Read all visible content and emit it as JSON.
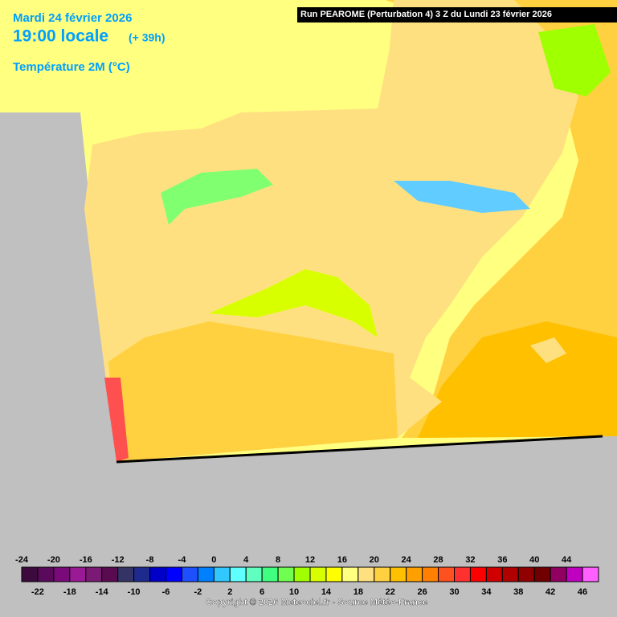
{
  "header": {
    "date": "Mardi 24 février 2026",
    "time": "19:00 locale",
    "lead": "(+ 39h)",
    "variable": "Température 2M (°C)"
  },
  "run": "Run PEAROME (Perturbation 4) 3 Z du Lundi 23 février 2026",
  "legend": {
    "ticks": [
      -24,
      -22,
      -20,
      -18,
      -16,
      -14,
      -12,
      -10,
      -8,
      -6,
      -4,
      -2,
      0,
      2,
      4,
      6,
      8,
      10,
      12,
      14,
      16,
      18,
      20,
      22,
      24,
      26,
      28,
      30,
      32,
      34,
      36,
      38,
      40,
      42,
      44,
      46
    ],
    "colors": [
      "#3c0a3c",
      "#5a0a5a",
      "#7a0a7a",
      "#9a1a96",
      "#7a1a74",
      "#5a0a50",
      "#333366",
      "#1e2a8c",
      "#0000c8",
      "#0000ff",
      "#1e50ff",
      "#0080ff",
      "#30c8ff",
      "#60ffff",
      "#60ffc0",
      "#40ff80",
      "#70ff50",
      "#a0ff00",
      "#d8ff00",
      "#ffff00",
      "#ffff80",
      "#ffe080",
      "#ffd040",
      "#ffc000",
      "#ffa000",
      "#ff8000",
      "#ff5020",
      "#ff3030",
      "#ff0000",
      "#d00000",
      "#b00000",
      "#900000",
      "#700000",
      "#900060",
      "#c000c0",
      "#ff60ff"
    ]
  },
  "copyright": "Copyright © 2026 Meteociel.fr - Source Météo-France"
}
